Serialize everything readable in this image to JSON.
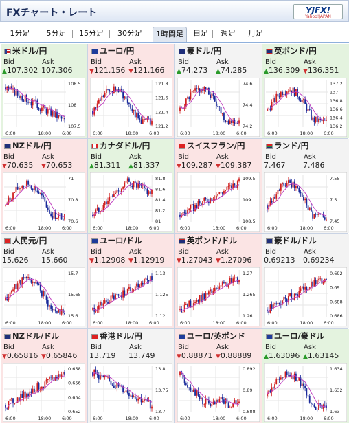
{
  "header": {
    "title": "FXチャート・レート",
    "logo_main": "YJFX!",
    "logo_sub": "Yahoo!JAPAN"
  },
  "tabs": [
    {
      "label": "1分足",
      "active": false
    },
    {
      "label": "5分足",
      "active": false
    },
    {
      "label": "15分足",
      "active": false
    },
    {
      "label": "30分足",
      "active": false
    },
    {
      "label": "1時間足",
      "active": true
    },
    {
      "label": "日足",
      "active": false
    },
    {
      "label": "週足",
      "active": false
    },
    {
      "label": "月足",
      "active": false
    }
  ],
  "labels": {
    "bid": "Bid",
    "ask": "Ask"
  },
  "x_ticks": [
    "6:00",
    "18:00",
    "6:00"
  ],
  "colors": {
    "up_bg": "#e4f3df",
    "down_bg": "#fbe4e4",
    "candle_up": "#d02020",
    "candle_down": "#1a2a9a",
    "ma": "#c040c0"
  },
  "pairs": [
    {
      "name": "米ドル/円",
      "flag": "us-flag-icon",
      "dir": "up",
      "bid": "107.302",
      "ask": "107.306",
      "bid_arrow": "up",
      "ask_arrow": "none",
      "y_ticks": [
        "108.5",
        "108",
        "107.5"
      ],
      "trend": "down"
    },
    {
      "name": "ユーロ/円",
      "flag": "eu-flag-icon",
      "dir": "down",
      "bid": "121.156",
      "ask": "121.166",
      "bid_arrow": "down",
      "ask_arrow": "down",
      "y_ticks": [
        "121.8",
        "121.6",
        "121.4",
        "121.2"
      ],
      "trend": "humpdown"
    },
    {
      "name": "豪ドル/円",
      "flag": "au-flag-icon",
      "dir": "flat",
      "bid": "74.273",
      "ask": "74.285",
      "bid_arrow": "up",
      "ask_arrow": "up",
      "y_ticks": [
        "74.6",
        "74.4",
        "74.2"
      ],
      "trend": "humpdown"
    },
    {
      "name": "英ポンド/円",
      "flag": "gb-flag-icon",
      "dir": "up",
      "bid": "136.309",
      "ask": "136.351",
      "bid_arrow": "up",
      "ask_arrow": "down",
      "y_ticks": [
        "137.2",
        "137",
        "136.8",
        "136.6",
        "136.4",
        "136.2"
      ],
      "trend": "humpdown"
    },
    {
      "name": "NZドル/円",
      "flag": "nz-flag-icon",
      "dir": "down",
      "bid": "70.635",
      "ask": "70.653",
      "bid_arrow": "down",
      "ask_arrow": "down",
      "y_ticks": [
        "71",
        "70.8",
        "70.6"
      ],
      "trend": "humpdown"
    },
    {
      "name": "カナダドル/円",
      "flag": "ca-flag-icon",
      "dir": "up",
      "bid": "81.311",
      "ask": "81.337",
      "bid_arrow": "up",
      "ask_arrow": "up",
      "y_ticks": [
        "81.8",
        "81.6",
        "81.4",
        "81.2",
        "81"
      ],
      "trend": "upthenflat"
    },
    {
      "name": "スイスフラン/円",
      "flag": "ch-flag-icon",
      "dir": "down",
      "bid": "109.287",
      "ask": "109.387",
      "bid_arrow": "down",
      "ask_arrow": "down",
      "y_ticks": [
        "109.5",
        "109",
        "108.5"
      ],
      "trend": "up"
    },
    {
      "name": "ランド/円",
      "flag": "za-flag-icon",
      "dir": "flat",
      "bid": "7.467",
      "ask": "7.486",
      "bid_arrow": "none",
      "ask_arrow": "none",
      "y_ticks": [
        "7.55",
        "7.5",
        "7.45"
      ],
      "trend": "humpdown"
    },
    {
      "name": "人民元/円",
      "flag": "cn-flag-icon",
      "dir": "flat",
      "bid": "15.626",
      "ask": "15.660",
      "bid_arrow": "none",
      "ask_arrow": "none",
      "y_ticks": [
        "15.7",
        "15.65",
        "15.6"
      ],
      "trend": "humpdown"
    },
    {
      "name": "ユーロ/ドル",
      "flag": "eu-flag-icon",
      "dir": "down",
      "bid": "1.12908",
      "ask": "1.12919",
      "bid_arrow": "down",
      "ask_arrow": "down",
      "y_ticks": [
        "1.13",
        "1.125",
        "1.12"
      ],
      "trend": "up"
    },
    {
      "name": "英ポンド/ドル",
      "flag": "gb-flag-icon",
      "dir": "down",
      "bid": "1.27043",
      "ask": "1.27096",
      "bid_arrow": "down",
      "ask_arrow": "down",
      "y_ticks": [
        "1.27",
        "1.265",
        "1.26"
      ],
      "trend": "up"
    },
    {
      "name": "豪ドル/ドル",
      "flag": "au-flag-icon",
      "dir": "flat",
      "bid": "0.69213",
      "ask": "0.69234",
      "bid_arrow": "none",
      "ask_arrow": "none",
      "y_ticks": [
        "0.692",
        "0.69",
        "0.688",
        "0.686"
      ],
      "trend": "up"
    },
    {
      "name": "NZドル/ドル",
      "flag": "nz-flag-icon",
      "dir": "down",
      "bid": "0.65816",
      "ask": "0.65846",
      "bid_arrow": "down",
      "ask_arrow": "down",
      "y_ticks": [
        "0.658",
        "0.656",
        "0.654",
        "0.652"
      ],
      "trend": "up"
    },
    {
      "name": "香港ドル/円",
      "flag": "hk-flag-icon",
      "dir": "flat",
      "bid": "13.719",
      "ask": "13.749",
      "bid_arrow": "none",
      "ask_arrow": "none",
      "y_ticks": [
        "13.8",
        "13.75",
        "13.7"
      ],
      "trend": "down"
    },
    {
      "name": "ユーロ/英ポンド",
      "flag": "eu-flag-icon",
      "dir": "down",
      "bid": "0.88871",
      "ask": "0.88889",
      "bid_arrow": "down",
      "ask_arrow": "down",
      "y_ticks": [
        "0.892",
        "0.89",
        "0.888"
      ],
      "trend": "downflat"
    },
    {
      "name": "ユーロ/豪ドル",
      "flag": "eu-flag-icon",
      "dir": "up",
      "bid": "1.63096",
      "ask": "1.63145",
      "bid_arrow": "up",
      "ask_arrow": "up",
      "y_ticks": [
        "1.634",
        "1.632",
        "1.63"
      ],
      "trend": "humpdown"
    }
  ]
}
